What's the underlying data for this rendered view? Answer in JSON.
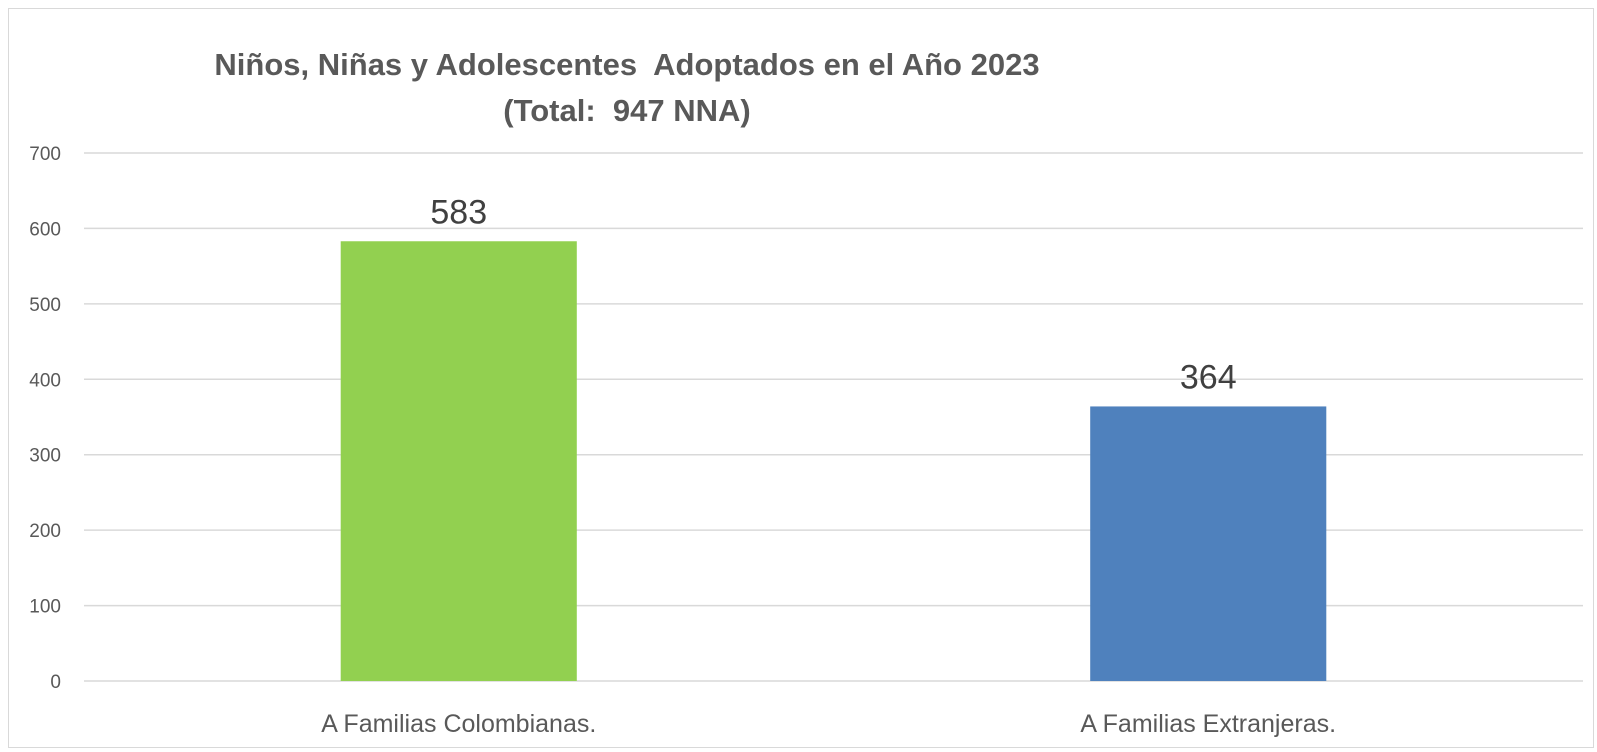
{
  "chart_data": {
    "type": "bar",
    "title": "Niños, Niñas y Adolescentes  Adoptados en el Año 2023\n(Total:  947 NNA)",
    "categories": [
      "A Familias Colombianas.",
      "A Familias Extranjeras."
    ],
    "values": [
      583,
      364
    ],
    "data_labels": [
      "583",
      "364"
    ],
    "colors": [
      "#92d050",
      "#4f81bd"
    ],
    "ylim": [
      0,
      700
    ],
    "yticks": [
      0,
      100,
      200,
      300,
      400,
      500,
      600,
      700
    ],
    "xlabel": "",
    "ylabel": "",
    "grid": true,
    "gridline_color": "#d9d9d9",
    "legend": "none"
  }
}
